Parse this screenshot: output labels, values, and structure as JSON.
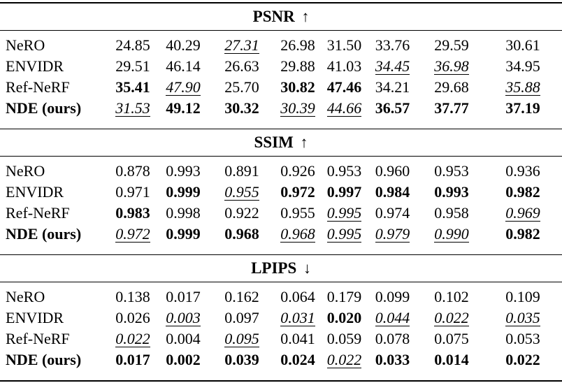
{
  "page": {
    "background": "#ffffff",
    "text_color": "#000000"
  },
  "table": {
    "column_count": 9,
    "value_formats": {
      "n": "normal",
      "bold": "best (bold)",
      "second": "second-best (italic underlined)"
    },
    "sections": [
      {
        "id": "psnr",
        "title": "PSNR",
        "arrow": "↑",
        "arrow_icon": "up-arrow-icon",
        "rows": [
          {
            "id": "nero",
            "label": "NeRO",
            "bold_label": false,
            "values": [
              {
                "t": "24.85",
                "f": "n"
              },
              {
                "t": "40.29",
                "f": "n"
              },
              {
                "t": "27.31",
                "f": "second"
              },
              {
                "t": "26.98",
                "f": "n"
              },
              {
                "t": "31.50",
                "f": "n"
              },
              {
                "t": "33.76",
                "f": "n"
              },
              {
                "t": "29.59",
                "f": "n"
              },
              {
                "t": "30.61",
                "f": "n"
              }
            ]
          },
          {
            "id": "envidr",
            "label": "ENVIDR",
            "bold_label": false,
            "values": [
              {
                "t": "29.51",
                "f": "n"
              },
              {
                "t": "46.14",
                "f": "n"
              },
              {
                "t": "26.63",
                "f": "n"
              },
              {
                "t": "29.88",
                "f": "n"
              },
              {
                "t": "41.03",
                "f": "n"
              },
              {
                "t": "34.45",
                "f": "second"
              },
              {
                "t": "36.98",
                "f": "second"
              },
              {
                "t": "34.95",
                "f": "n"
              }
            ]
          },
          {
            "id": "ref-nerf",
            "label": "Ref-NeRF",
            "bold_label": false,
            "values": [
              {
                "t": "35.41",
                "f": "bold"
              },
              {
                "t": "47.90",
                "f": "second"
              },
              {
                "t": "25.70",
                "f": "n"
              },
              {
                "t": "30.82",
                "f": "bold"
              },
              {
                "t": "47.46",
                "f": "bold"
              },
              {
                "t": "34.21",
                "f": "n"
              },
              {
                "t": "29.68",
                "f": "n"
              },
              {
                "t": "35.88",
                "f": "second"
              }
            ]
          },
          {
            "id": "nde-ours",
            "label": "NDE (ours)",
            "bold_label": true,
            "values": [
              {
                "t": "31.53",
                "f": "second"
              },
              {
                "t": "49.12",
                "f": "bold"
              },
              {
                "t": "30.32",
                "f": "bold"
              },
              {
                "t": "30.39",
                "f": "second"
              },
              {
                "t": "44.66",
                "f": "second"
              },
              {
                "t": "36.57",
                "f": "bold"
              },
              {
                "t": "37.77",
                "f": "bold"
              },
              {
                "t": "37.19",
                "f": "bold"
              }
            ]
          }
        ]
      },
      {
        "id": "ssim",
        "title": "SSIM",
        "arrow": "↑",
        "arrow_icon": "up-arrow-icon",
        "rows": [
          {
            "id": "nero",
            "label": "NeRO",
            "bold_label": false,
            "values": [
              {
                "t": "0.878",
                "f": "n"
              },
              {
                "t": "0.993",
                "f": "n"
              },
              {
                "t": "0.891",
                "f": "n"
              },
              {
                "t": "0.926",
                "f": "n"
              },
              {
                "t": "0.953",
                "f": "n"
              },
              {
                "t": "0.960",
                "f": "n"
              },
              {
                "t": "0.953",
                "f": "n"
              },
              {
                "t": "0.936",
                "f": "n"
              }
            ]
          },
          {
            "id": "envidr",
            "label": "ENVIDR",
            "bold_label": false,
            "values": [
              {
                "t": "0.971",
                "f": "n"
              },
              {
                "t": "0.999",
                "f": "bold"
              },
              {
                "t": "0.955",
                "f": "second"
              },
              {
                "t": "0.972",
                "f": "bold"
              },
              {
                "t": "0.997",
                "f": "bold"
              },
              {
                "t": "0.984",
                "f": "bold"
              },
              {
                "t": "0.993",
                "f": "bold"
              },
              {
                "t": "0.982",
                "f": "bold"
              }
            ]
          },
          {
            "id": "ref-nerf",
            "label": "Ref-NeRF",
            "bold_label": false,
            "values": [
              {
                "t": "0.983",
                "f": "bold"
              },
              {
                "t": "0.998",
                "f": "n"
              },
              {
                "t": "0.922",
                "f": "n"
              },
              {
                "t": "0.955",
                "f": "n"
              },
              {
                "t": "0.995",
                "f": "second"
              },
              {
                "t": "0.974",
                "f": "n"
              },
              {
                "t": "0.958",
                "f": "n"
              },
              {
                "t": "0.969",
                "f": "second"
              }
            ]
          },
          {
            "id": "nde-ours",
            "label": "NDE (ours)",
            "bold_label": true,
            "values": [
              {
                "t": "0.972",
                "f": "second"
              },
              {
                "t": "0.999",
                "f": "bold"
              },
              {
                "t": "0.968",
                "f": "bold"
              },
              {
                "t": "0.968",
                "f": "second"
              },
              {
                "t": "0.995",
                "f": "second"
              },
              {
                "t": "0.979",
                "f": "second"
              },
              {
                "t": "0.990",
                "f": "second"
              },
              {
                "t": "0.982",
                "f": "bold"
              }
            ]
          }
        ]
      },
      {
        "id": "lpips",
        "title": "LPIPS",
        "arrow": "↓",
        "arrow_icon": "down-arrow-icon",
        "rows": [
          {
            "id": "nero",
            "label": "NeRO",
            "bold_label": false,
            "values": [
              {
                "t": "0.138",
                "f": "n"
              },
              {
                "t": "0.017",
                "f": "n"
              },
              {
                "t": "0.162",
                "f": "n"
              },
              {
                "t": "0.064",
                "f": "n"
              },
              {
                "t": "0.179",
                "f": "n"
              },
              {
                "t": "0.099",
                "f": "n"
              },
              {
                "t": "0.102",
                "f": "n"
              },
              {
                "t": "0.109",
                "f": "n"
              }
            ]
          },
          {
            "id": "envidr",
            "label": "ENVIDR",
            "bold_label": false,
            "values": [
              {
                "t": "0.026",
                "f": "n"
              },
              {
                "t": "0.003",
                "f": "second"
              },
              {
                "t": "0.097",
                "f": "n"
              },
              {
                "t": "0.031",
                "f": "second"
              },
              {
                "t": "0.020",
                "f": "bold"
              },
              {
                "t": "0.044",
                "f": "second"
              },
              {
                "t": "0.022",
                "f": "second"
              },
              {
                "t": "0.035",
                "f": "second"
              }
            ]
          },
          {
            "id": "ref-nerf",
            "label": "Ref-NeRF",
            "bold_label": false,
            "values": [
              {
                "t": "0.022",
                "f": "second"
              },
              {
                "t": "0.004",
                "f": "n"
              },
              {
                "t": "0.095",
                "f": "second"
              },
              {
                "t": "0.041",
                "f": "n"
              },
              {
                "t": "0.059",
                "f": "n"
              },
              {
                "t": "0.078",
                "f": "n"
              },
              {
                "t": "0.075",
                "f": "n"
              },
              {
                "t": "0.053",
                "f": "n"
              }
            ]
          },
          {
            "id": "nde-ours",
            "label": "NDE (ours)",
            "bold_label": true,
            "values": [
              {
                "t": "0.017",
                "f": "bold"
              },
              {
                "t": "0.002",
                "f": "bold"
              },
              {
                "t": "0.039",
                "f": "bold"
              },
              {
                "t": "0.024",
                "f": "bold"
              },
              {
                "t": "0.022",
                "f": "second"
              },
              {
                "t": "0.033",
                "f": "bold"
              },
              {
                "t": "0.014",
                "f": "bold"
              },
              {
                "t": "0.022",
                "f": "bold"
              }
            ]
          }
        ]
      }
    ]
  }
}
